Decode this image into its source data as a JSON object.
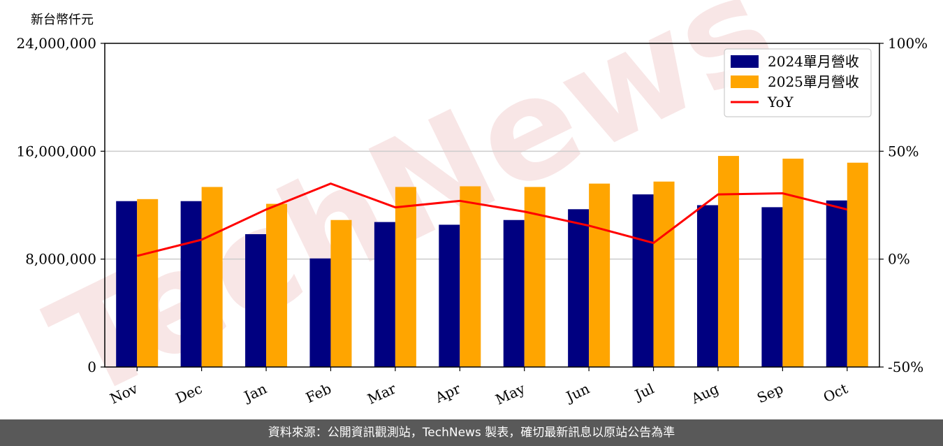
{
  "unit_label": "新台幣仟元",
  "footer_text": "資料來源：公開資訊觀測站，TechNews 製表，確切最新訊息以原站公告為準",
  "watermark_text": "TechNews",
  "colors": {
    "series_2024": "#000080",
    "series_2025": "#FFA500",
    "yoy": "#FF0000",
    "grid": "#cccccc",
    "footer_bg": "#595959",
    "watermark": "#f5dede"
  },
  "chart_data": {
    "type": "bar",
    "categories": [
      "Nov",
      "Dec",
      "Jan",
      "Feb",
      "Mar",
      "Apr",
      "May",
      "Jun",
      "Jul",
      "Aug",
      "Sep",
      "Oct"
    ],
    "series": [
      {
        "name": "2024單月營收",
        "type": "bar",
        "axis": "left",
        "values": [
          12300000,
          12300000,
          9850000,
          8050000,
          10750000,
          10550000,
          10900000,
          11700000,
          12800000,
          12000000,
          11850000,
          12350000
        ]
      },
      {
        "name": "2025單月營收",
        "type": "bar",
        "axis": "left",
        "values": [
          12450000,
          13350000,
          12100000,
          10900000,
          13350000,
          13400000,
          13350000,
          13600000,
          13750000,
          15650000,
          15450000,
          15150000
        ]
      },
      {
        "name": "YoY",
        "type": "line",
        "axis": "right",
        "values": [
          1.5,
          9.0,
          23.0,
          35.0,
          24.0,
          27.0,
          22.0,
          15.5,
          7.5,
          30.0,
          30.5,
          23.0
        ]
      }
    ],
    "y_left": {
      "min": 0,
      "max": 24000000,
      "ticks": [
        0,
        8000000,
        16000000,
        24000000
      ],
      "tick_labels": [
        "0",
        "8,000,000",
        "16,000,000",
        "24,000,000"
      ]
    },
    "y_right": {
      "min": -50,
      "max": 100,
      "ticks": [
        -50,
        0,
        50,
        100
      ],
      "tick_labels": [
        "-50%",
        "0%",
        "50%",
        "100%"
      ]
    },
    "grid": "horizontal",
    "legend_position": "top-right"
  }
}
